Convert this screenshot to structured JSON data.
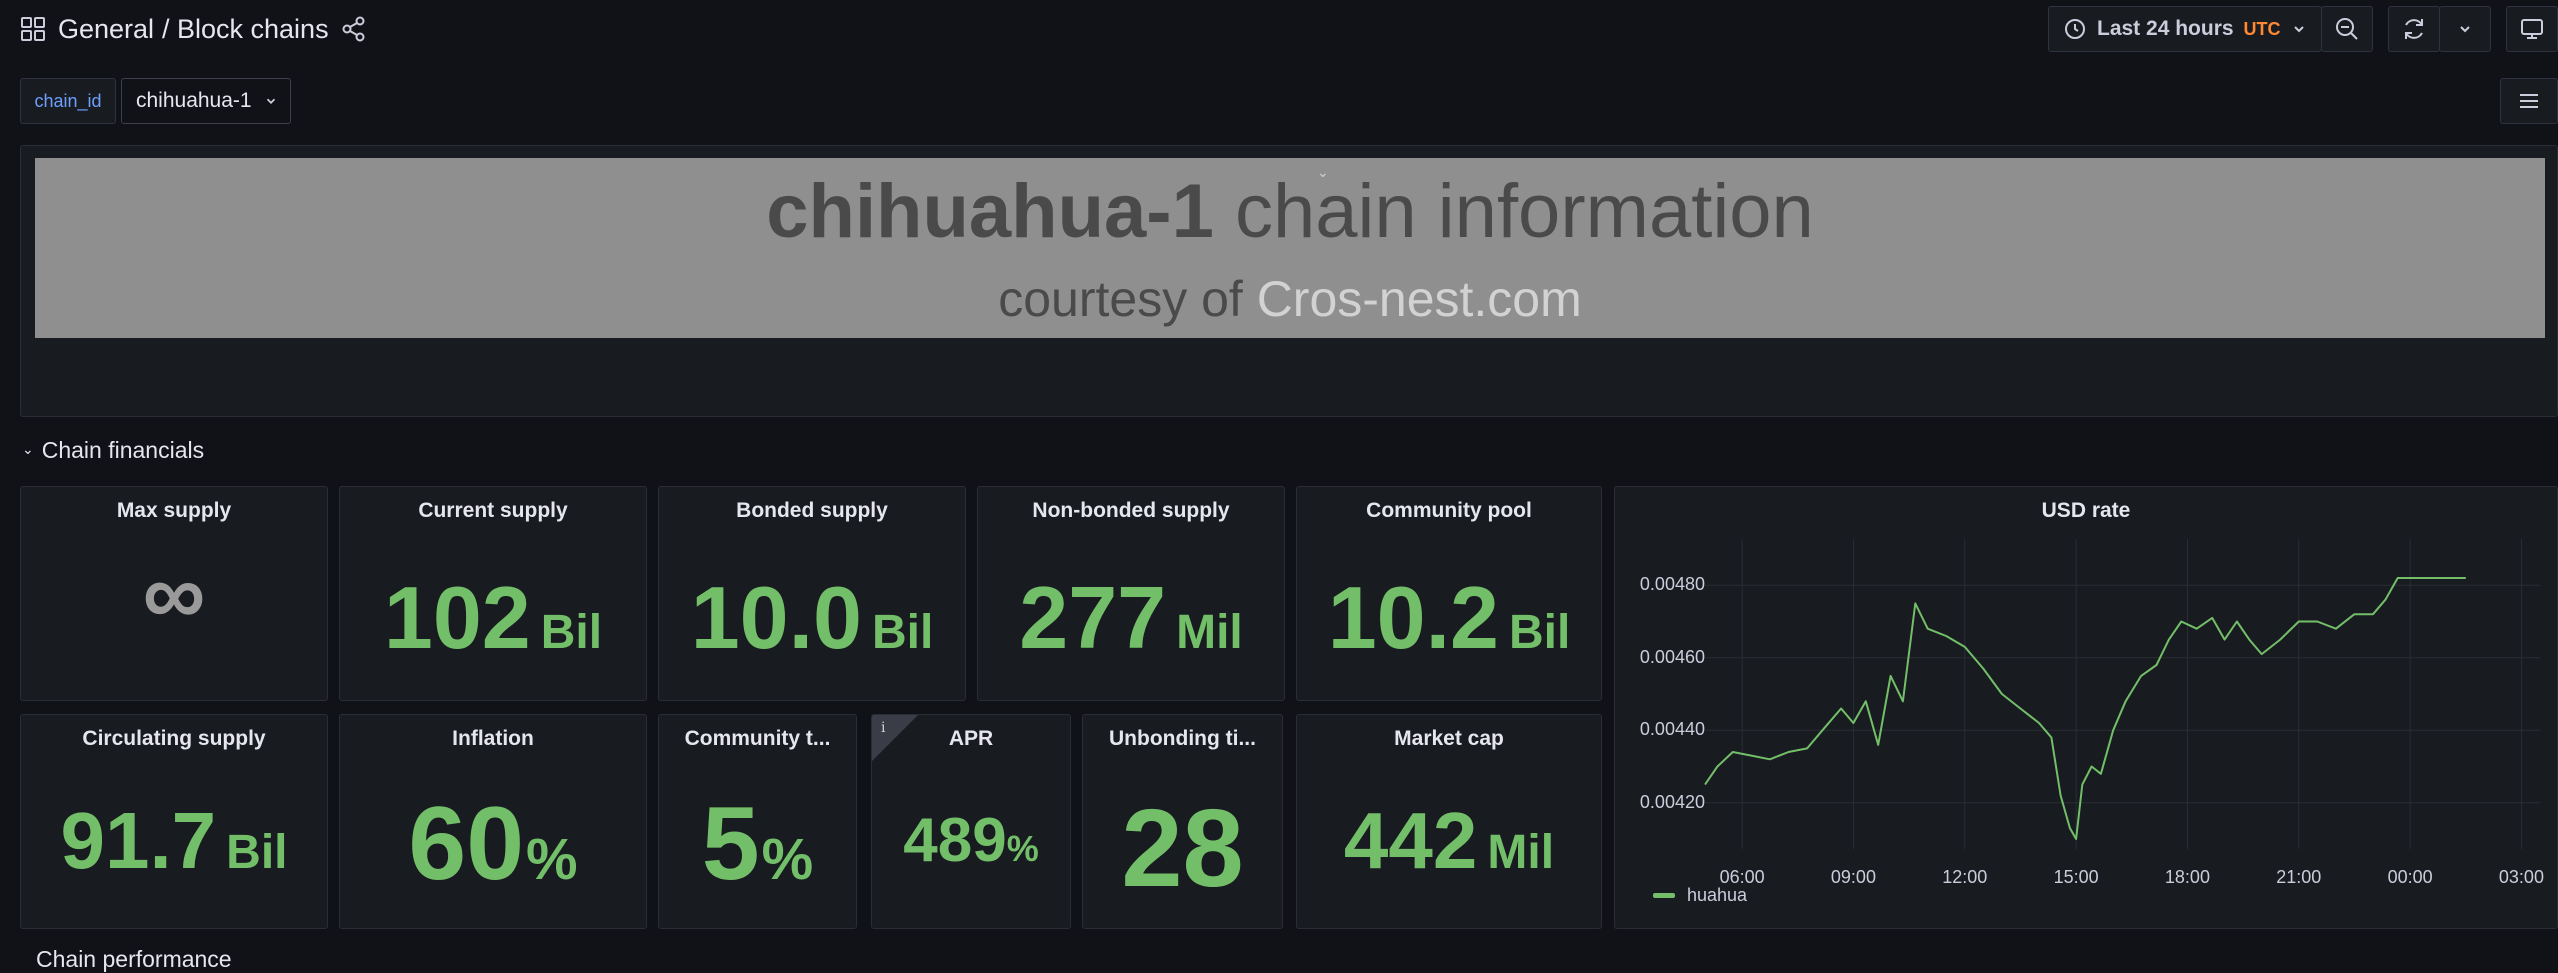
{
  "header": {
    "folder": "General",
    "dashboard": "/ Block chains",
    "time_range": "Last 24 hours",
    "timezone": "UTC"
  },
  "variables": {
    "label": "chain_id",
    "value": "chihuahua-1"
  },
  "banner": {
    "title_bold": "chihuahua-1",
    "title_rest": " chain information",
    "subtitle_prefix": "courtesy of ",
    "subtitle_link": "Cros-nest.com"
  },
  "rows": {
    "financials": "Chain financials",
    "performance": "Chain performance"
  },
  "panels": {
    "max_supply": {
      "title": "Max supply",
      "value": "∞"
    },
    "current_supply": {
      "title": "Current supply",
      "value": "102",
      "unit": "Bil"
    },
    "bonded_supply": {
      "title": "Bonded supply",
      "value": "10.0",
      "unit": "Bil"
    },
    "non_bonded_supply": {
      "title": "Non-bonded supply",
      "value": "277",
      "unit": "Mil"
    },
    "community_pool": {
      "title": "Community pool",
      "value": "10.2",
      "unit": "Bil"
    },
    "circulating_supply": {
      "title": "Circulating supply",
      "value": "91.7",
      "unit": "Bil"
    },
    "inflation": {
      "title": "Inflation",
      "value": "60",
      "unit": "%"
    },
    "community_tax": {
      "title": "Community t...",
      "value": "5",
      "unit": "%"
    },
    "apr": {
      "title": "APR",
      "value": "489",
      "unit": "%",
      "info": "i"
    },
    "unbonding_time": {
      "title": "Unbonding ti...",
      "value": "28"
    },
    "market_cap": {
      "title": "Market cap",
      "value": "442",
      "unit": "Mil"
    },
    "usd_rate": {
      "title": "USD rate"
    }
  },
  "icons": [
    "apps-icon",
    "share-icon",
    "clock-icon",
    "chevron-down-icon",
    "zoom-out-icon",
    "refresh-icon",
    "monitor-icon",
    "menu-icon"
  ],
  "colors": {
    "background": "#111217",
    "panel": "#181b1f",
    "stat_green": "#73bf69",
    "accent_orange": "#ff8833",
    "variable_blue": "#6e9fff"
  },
  "chart_data": {
    "type": "line",
    "title": "USD rate",
    "x_ticks": [
      "06:00",
      "09:00",
      "12:00",
      "15:00",
      "18:00",
      "21:00",
      "00:00",
      "03:00"
    ],
    "y_ticks": [
      "0.00480",
      "0.00460",
      "0.00440",
      "0.00420"
    ],
    "ylim": [
      0.0041,
      0.0049
    ],
    "grid": true,
    "legend_position": "bottom-left",
    "series": [
      {
        "name": "huahua",
        "color": "#73bf69",
        "points": [
          [
            "05:00",
            0.00425
          ],
          [
            "05:20",
            0.0043
          ],
          [
            "05:45",
            0.00434
          ],
          [
            "06:15",
            0.00433
          ],
          [
            "06:45",
            0.00432
          ],
          [
            "07:15",
            0.00434
          ],
          [
            "07:45",
            0.00435
          ],
          [
            "08:10",
            0.0044
          ],
          [
            "08:40",
            0.00446
          ],
          [
            "09:00",
            0.00442
          ],
          [
            "09:20",
            0.00448
          ],
          [
            "09:40",
            0.00436
          ],
          [
            "10:00",
            0.00455
          ],
          [
            "10:20",
            0.00448
          ],
          [
            "10:40",
            0.00475
          ],
          [
            "11:00",
            0.00468
          ],
          [
            "11:30",
            0.00466
          ],
          [
            "12:00",
            0.00463
          ],
          [
            "12:30",
            0.00457
          ],
          [
            "13:00",
            0.0045
          ],
          [
            "13:30",
            0.00446
          ],
          [
            "14:00",
            0.00442
          ],
          [
            "14:20",
            0.00438
          ],
          [
            "14:35",
            0.00422
          ],
          [
            "14:50",
            0.00413
          ],
          [
            "15:00",
            0.0041
          ],
          [
            "15:10",
            0.00425
          ],
          [
            "15:25",
            0.0043
          ],
          [
            "15:40",
            0.00428
          ],
          [
            "16:00",
            0.0044
          ],
          [
            "16:20",
            0.00448
          ],
          [
            "16:45",
            0.00455
          ],
          [
            "17:10",
            0.00458
          ],
          [
            "17:30",
            0.00465
          ],
          [
            "17:50",
            0.0047
          ],
          [
            "18:15",
            0.00468
          ],
          [
            "18:40",
            0.00471
          ],
          [
            "19:00",
            0.00465
          ],
          [
            "19:20",
            0.0047
          ],
          [
            "19:40",
            0.00465
          ],
          [
            "20:00",
            0.00461
          ],
          [
            "20:30",
            0.00465
          ],
          [
            "21:00",
            0.0047
          ],
          [
            "21:30",
            0.0047
          ],
          [
            "22:00",
            0.00468
          ],
          [
            "22:30",
            0.00472
          ],
          [
            "23:00",
            0.00472
          ],
          [
            "23:20",
            0.00476
          ],
          [
            "23:40",
            0.00482
          ],
          [
            "00:30",
            0.00482
          ],
          [
            "01:30",
            0.00482
          ]
        ]
      }
    ]
  }
}
